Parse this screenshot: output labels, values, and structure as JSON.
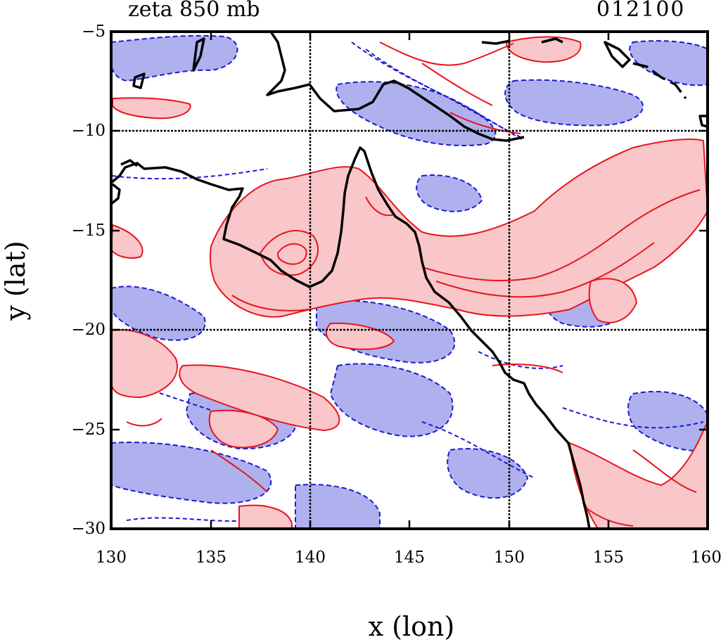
{
  "map": {
    "title": "zeta 850 mb",
    "timestamp": "012100",
    "x_axis_label": "x (lon)",
    "y_axis_label": "y (lat)",
    "x_ticks": [
      "130",
      "135",
      "140",
      "145",
      "150",
      "155",
      "160"
    ],
    "y_ticks": [
      "−5",
      "−10",
      "−15",
      "−20",
      "−25",
      "−30"
    ],
    "lon_range": [
      130,
      160
    ],
    "lat_range": [
      -30,
      -5
    ],
    "gridlines_lon": [
      140,
      150
    ],
    "gridlines_lat": [
      -10,
      -20
    ],
    "legend": "none",
    "colors": {
      "positive_fill": "#f9c6c9",
      "positive_contour": "#e8141c",
      "negative_fill": "#aeb1ee",
      "negative_contour": "#1a1ad2",
      "coastline": "#000000",
      "grid": "#000000"
    }
  }
}
